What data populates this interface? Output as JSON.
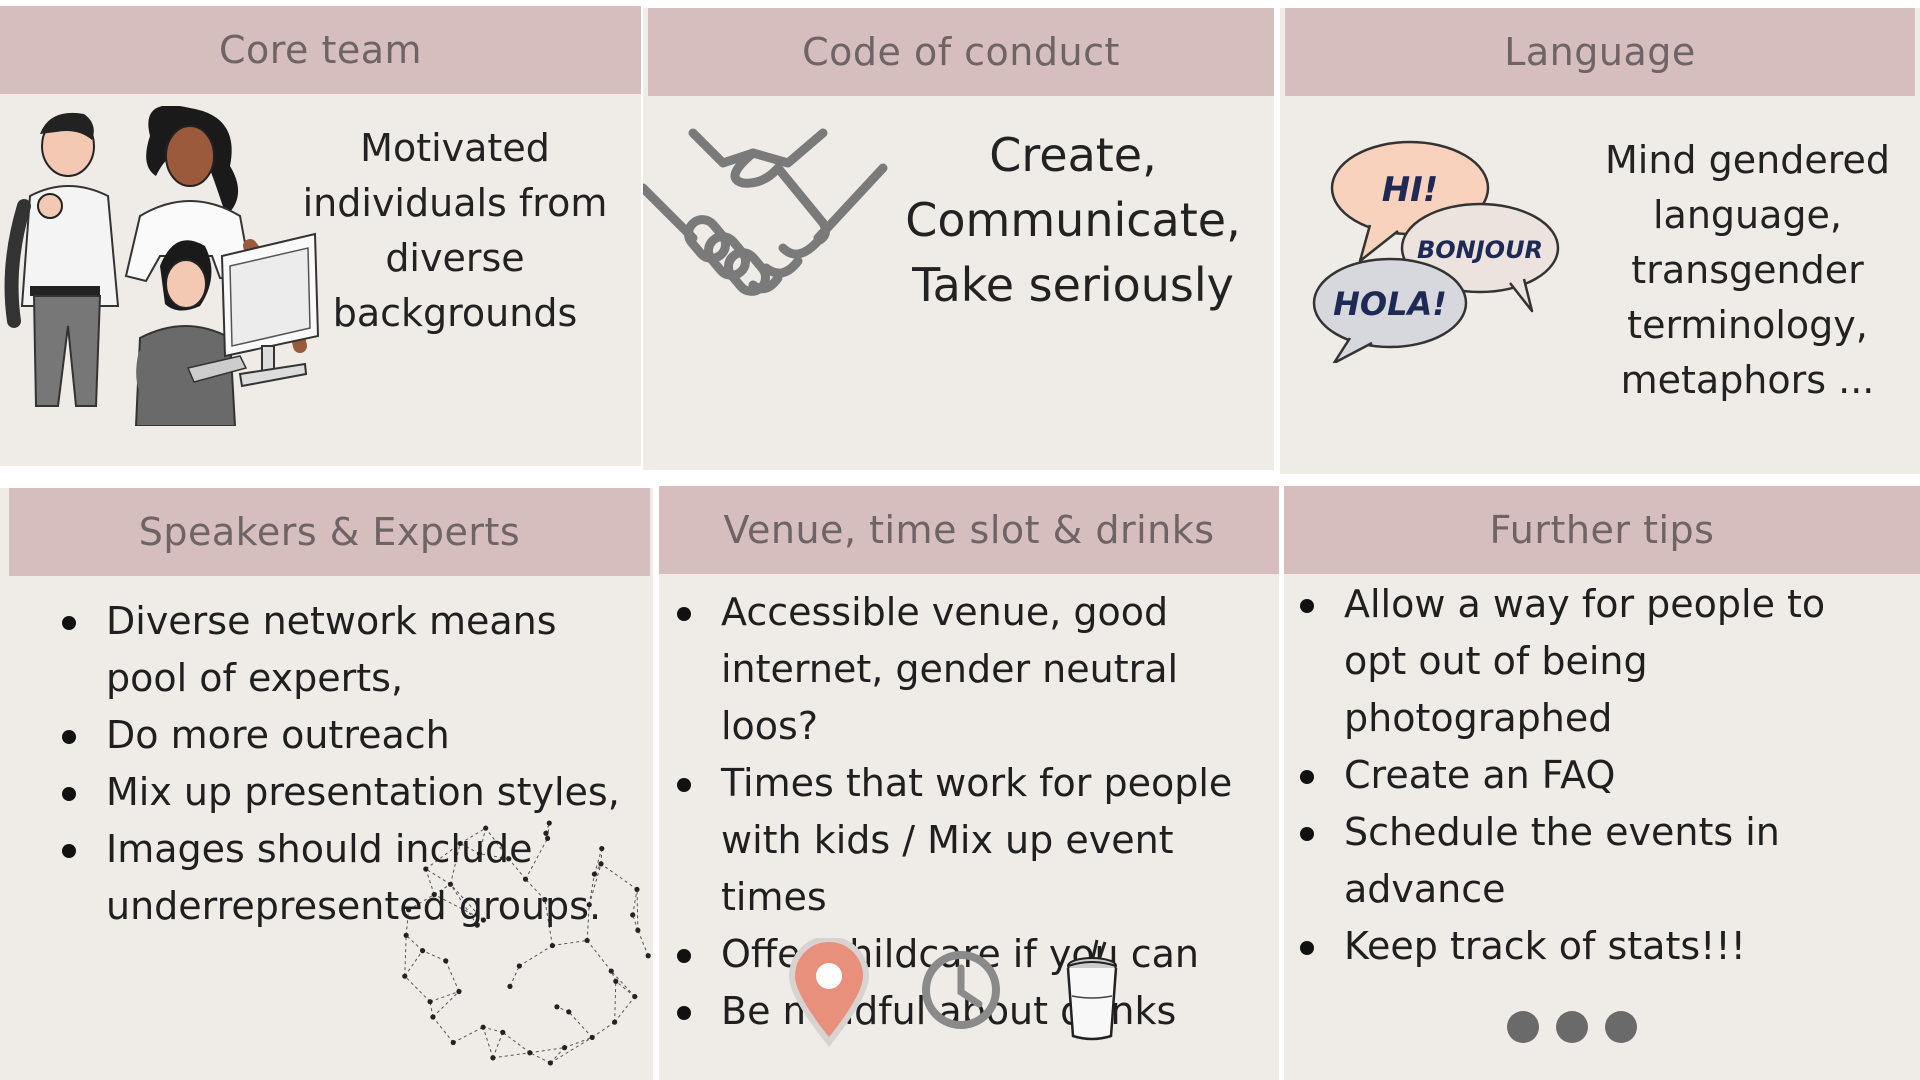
{
  "core_team": {
    "title": "Core team",
    "lines": [
      "Motivated",
      "individuals from",
      "diverse",
      "backgrounds"
    ]
  },
  "code_of_conduct": {
    "title": "Code of conduct",
    "lines": [
      "Create,",
      "Communicate,",
      "Take seriously"
    ]
  },
  "language": {
    "title": "Language",
    "bubbles": [
      "HI!",
      "BONJOUR",
      "HOLA!"
    ],
    "lines": [
      "Mind gendered",
      "language,",
      "transgender",
      "terminology,",
      "metaphors ..."
    ]
  },
  "speakers": {
    "title": "Speakers & Experts",
    "items": [
      [
        "Diverse network means",
        "pool of experts,"
      ],
      [
        "Do more outreach"
      ],
      [
        "Mix up presentation styles,"
      ],
      [
        "Images should include",
        "underrepresented groups."
      ]
    ]
  },
  "venue": {
    "title": "Venue, time slot & drinks",
    "items": [
      [
        "Accessible venue, good",
        "internet, gender neutral loos?"
      ],
      [
        "Times that work for people",
        "with kids / Mix up event times"
      ],
      [
        "Offer childcare if you can"
      ],
      [
        "Be mindful about drinks"
      ]
    ],
    "icons": [
      "location-pin-icon",
      "clock-icon",
      "drink-cup-icon"
    ]
  },
  "further_tips": {
    "title": "Further tips",
    "items": [
      [
        "Allow a way for people to",
        "opt out of being",
        "photographed"
      ],
      [
        "Create an FAQ"
      ],
      [
        "Schedule the events in",
        "advance"
      ],
      [
        "Keep track of stats!!!"
      ]
    ]
  },
  "colors": {
    "header_bg": "#d6bdbe",
    "card_bg": "#efebe7",
    "header_text": "#6e6466",
    "pin": "#e8907c",
    "icon_gray": "#8a8a8a"
  }
}
